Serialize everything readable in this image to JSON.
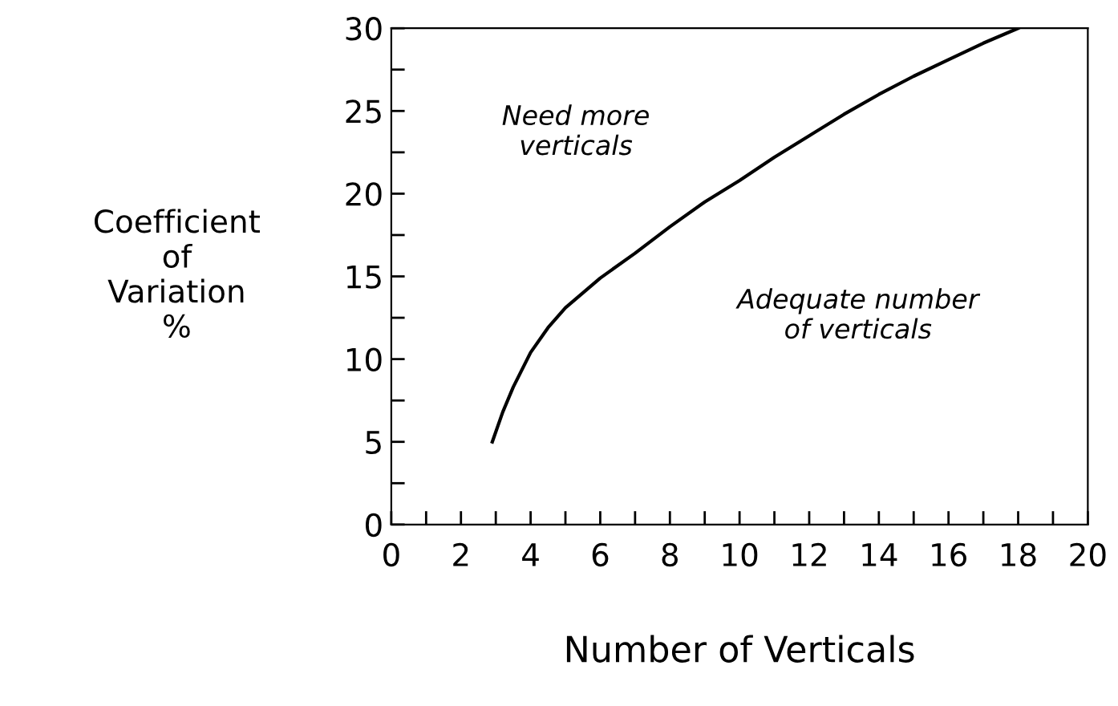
{
  "chart_data": {
    "type": "line",
    "xlabel": "Number of Verticals",
    "ylabel": "Coefficient\nof\nVariation\n%",
    "x": [
      2.9,
      3.2,
      3.5,
      4,
      4.5,
      5,
      5.5,
      6,
      7,
      8,
      9,
      10,
      11,
      12,
      13,
      14,
      15,
      16,
      17,
      18
    ],
    "series": [
      {
        "color": "#000000",
        "values": [
          5,
          6.8,
          8.3,
          10.4,
          11.9,
          13.1,
          14.0,
          14.9,
          16.4,
          18.0,
          19.5,
          20.8,
          22.2,
          23.5,
          24.8,
          26.0,
          27.1,
          28.1,
          29.1,
          30
        ]
      }
    ],
    "xlim": [
      0,
      20
    ],
    "ylim": [
      0,
      30
    ],
    "xticks": [
      0,
      2,
      4,
      6,
      8,
      10,
      12,
      14,
      16,
      18,
      20
    ],
    "yticks": [
      0,
      5,
      10,
      15,
      20,
      25,
      30
    ],
    "annotations": [
      "Need more\nverticals",
      "Adequate number\nof verticals"
    ],
    "grid": false,
    "legend": false,
    "marker": "none",
    "line_style": "solid"
  }
}
